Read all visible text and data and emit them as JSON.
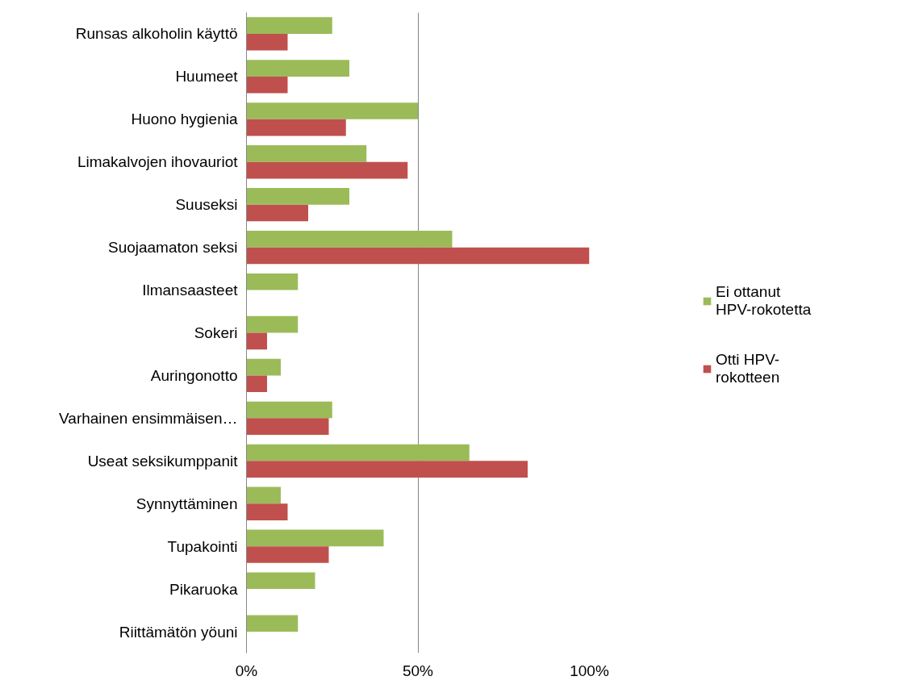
{
  "chart_data": {
    "type": "bar",
    "orientation": "horizontal",
    "categories": [
      "Runsas alkoholin käyttö",
      "Huumeet",
      "Huono hygienia",
      "Limakalvojen ihovauriot",
      "Suuseksi",
      "Suojaamaton seksi",
      "Ilmansaasteet",
      "Sokeri",
      "Auringonotto",
      "Varhainen ensimmäisen…",
      "Useat seksikumppanit",
      "Synnyttäminen",
      "Tupakointi",
      "Pikaruoka",
      "Riittämätön yöuni"
    ],
    "series": [
      {
        "name": "Ei ottanut HPV-rokotetta",
        "color": "#9bbb59",
        "values": [
          25,
          30,
          50,
          35,
          30,
          60,
          15,
          15,
          10,
          25,
          65,
          10,
          40,
          20,
          15
        ]
      },
      {
        "name": "Otti HPV-rokotteen",
        "color": "#c0504d",
        "values": [
          12,
          12,
          29,
          47,
          18,
          100,
          0,
          6,
          6,
          24,
          82,
          12,
          24,
          0,
          0
        ]
      }
    ],
    "xlim": [
      0,
      100
    ],
    "xticks": [
      {
        "value": 0,
        "label": "0%"
      },
      {
        "value": 50,
        "label": "50%"
      },
      {
        "value": 100,
        "label": "100%"
      }
    ],
    "grid": "x",
    "legend": "right"
  }
}
